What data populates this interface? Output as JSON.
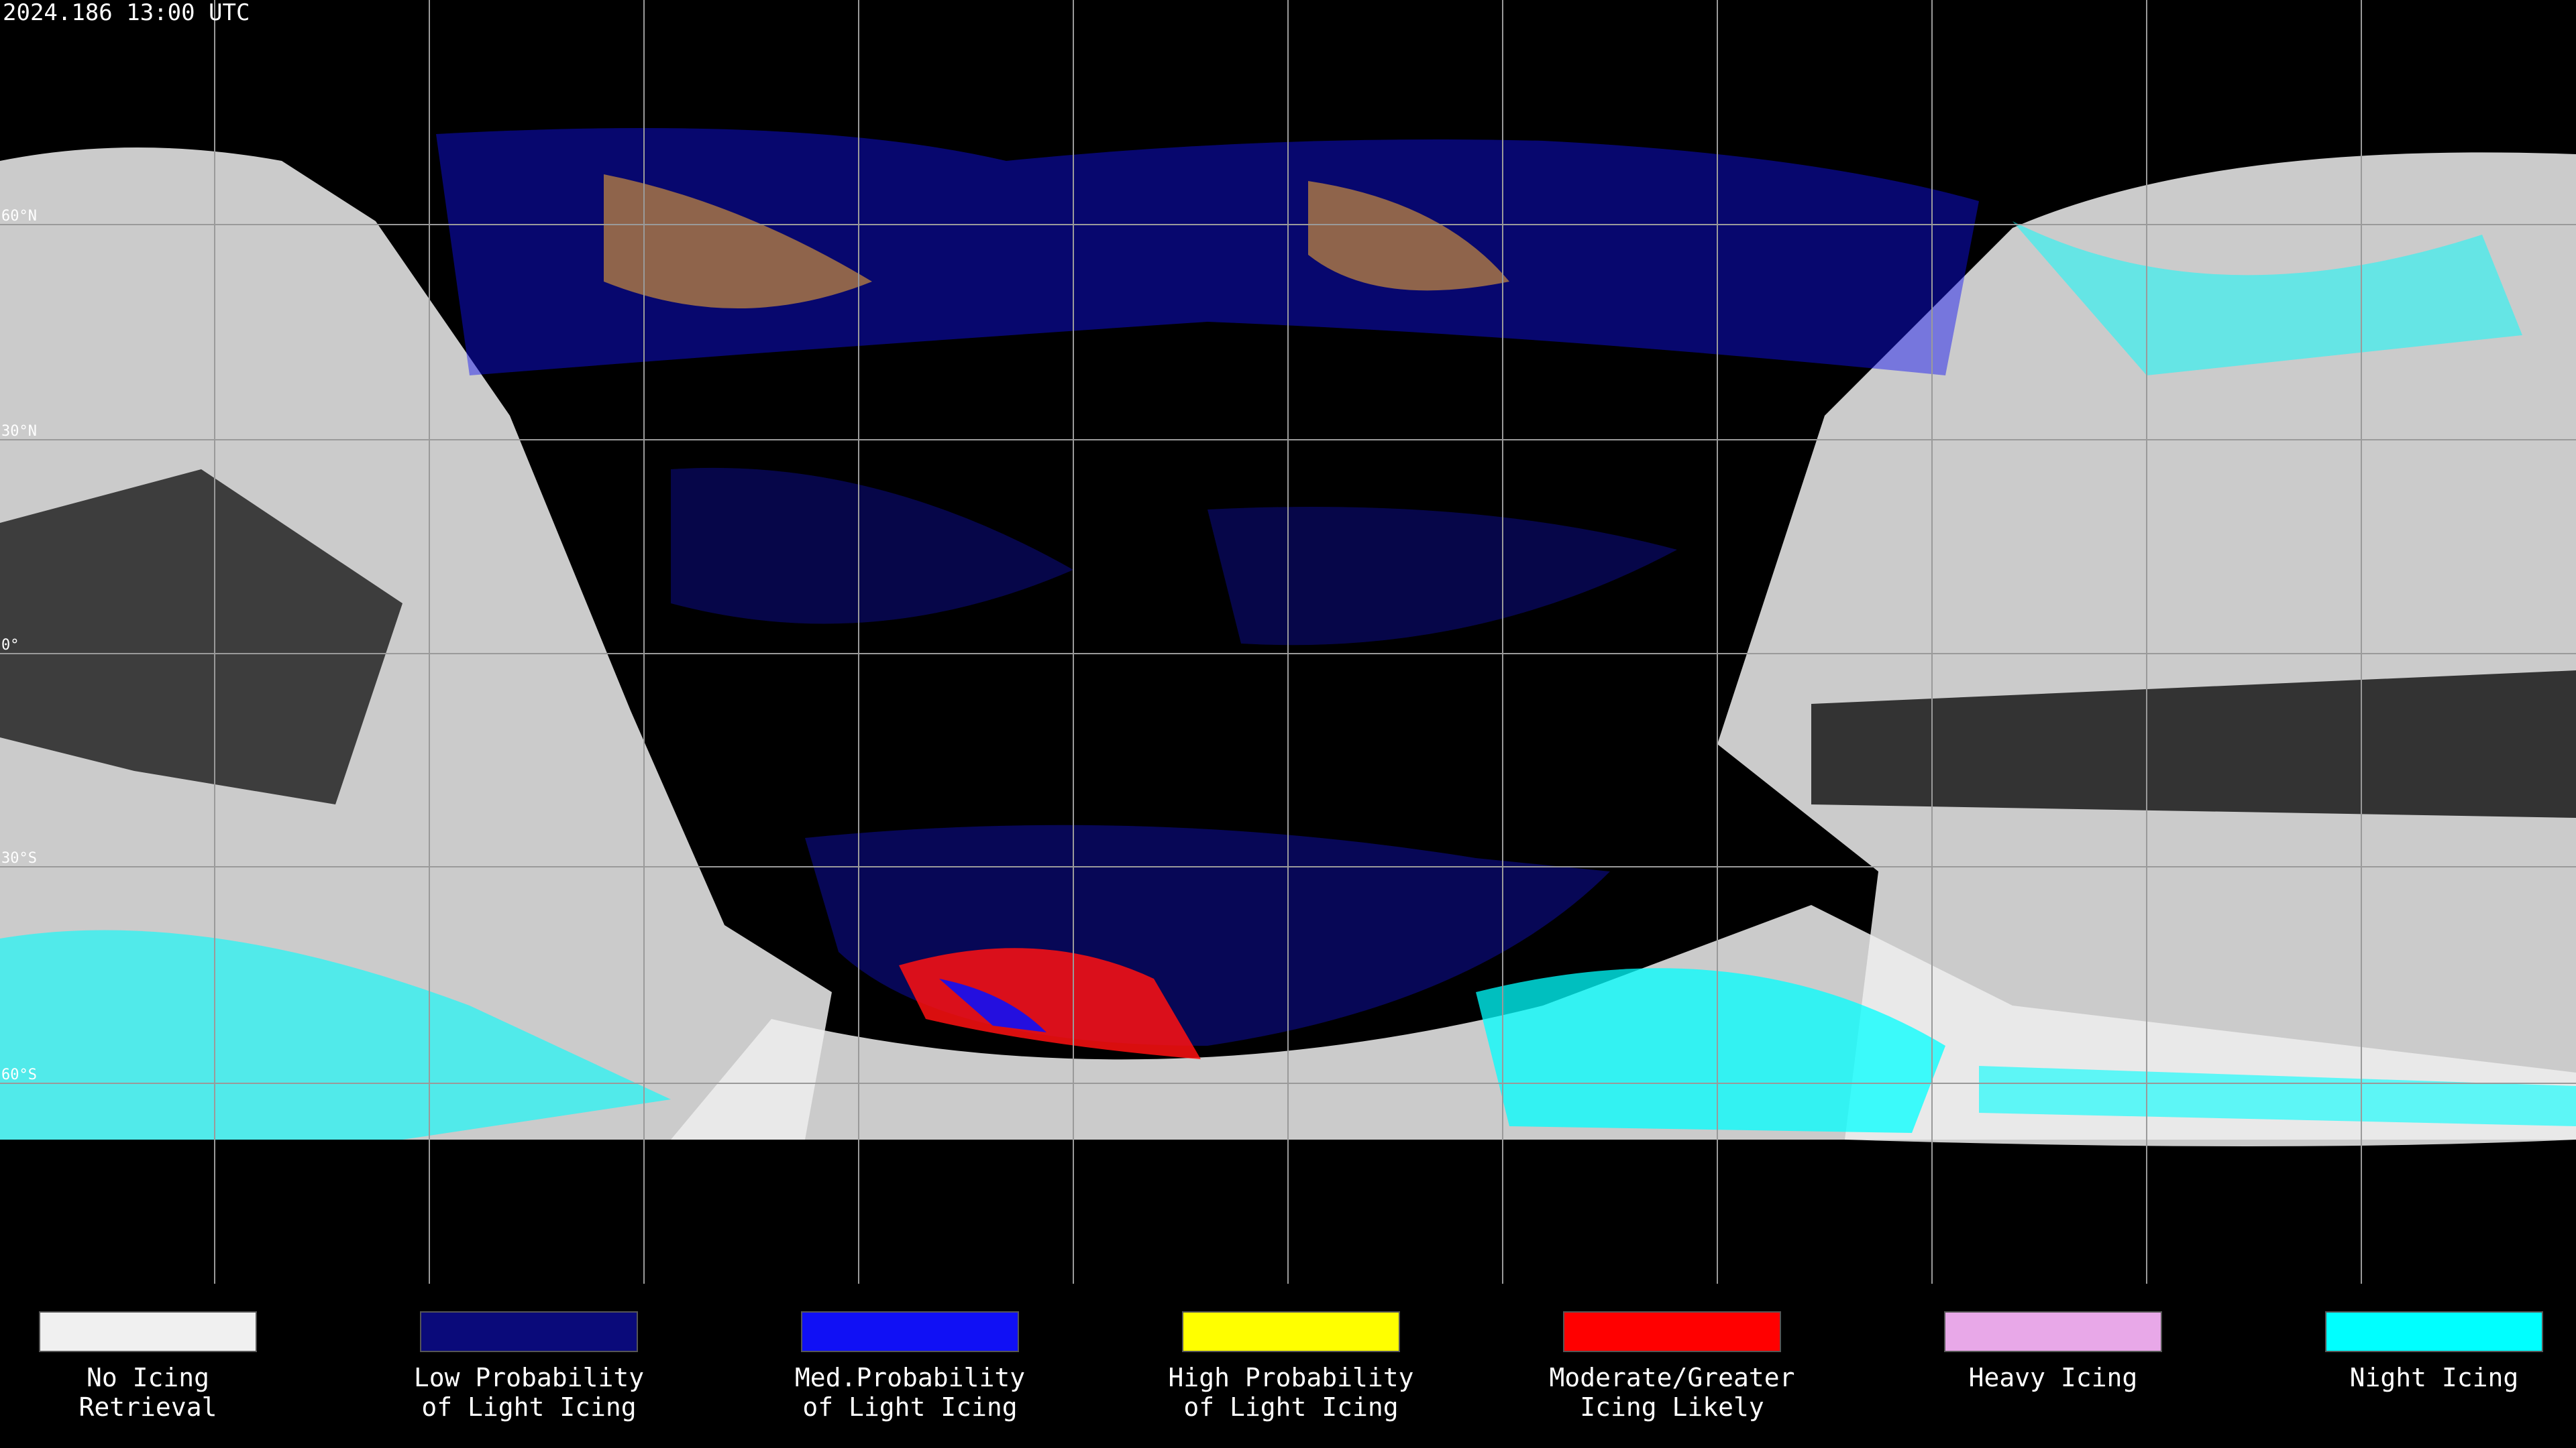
{
  "header": {
    "timestamp": "2024.186 13:00 UTC"
  },
  "grid": {
    "latitude_labels": [
      "60°N",
      "30°N",
      "0°",
      "30°S",
      "60°S"
    ]
  },
  "legend": [
    {
      "lines": [
        "No Icing",
        "Retrieval"
      ],
      "color": "#f0f0f0"
    },
    {
      "lines": [
        "Low Probability",
        "of Light Icing"
      ],
      "color": "#0a0a7a"
    },
    {
      "lines": [
        "Med.Probability",
        "of Light Icing"
      ],
      "color": "#1010f5"
    },
    {
      "lines": [
        "High Probability",
        "of Light Icing"
      ],
      "color": "#ffff00"
    },
    {
      "lines": [
        "Moderate/Greater",
        "Icing Likely"
      ],
      "color": "#ff0000"
    },
    {
      "lines": [
        "Heavy Icing"
      ],
      "color": "#e8a8e8"
    },
    {
      "lines": [
        "Night Icing"
      ],
      "color": "#00ffff"
    }
  ]
}
